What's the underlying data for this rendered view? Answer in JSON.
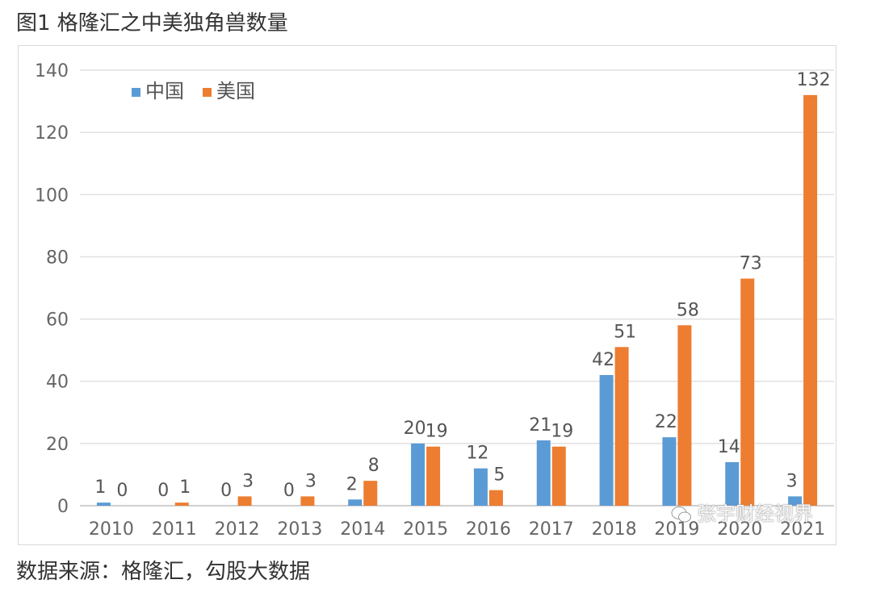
{
  "figure": {
    "title": "图1 格隆汇之中美独角兽数量",
    "source": "数据来源：格隆汇，勾股大数据",
    "watermark": "张宇财经视界"
  },
  "chart_data": {
    "type": "bar",
    "categories": [
      "2010",
      "2011",
      "2012",
      "2013",
      "2014",
      "2015",
      "2016",
      "2017",
      "2018",
      "2019",
      "2020",
      "2021"
    ],
    "series": [
      {
        "name": "中国",
        "color": "#5b9bd5",
        "values": [
          1,
          0,
          0,
          0,
          2,
          20,
          12,
          21,
          42,
          22,
          14,
          3
        ]
      },
      {
        "name": "美国",
        "color": "#ed7d31",
        "values": [
          0,
          1,
          3,
          3,
          8,
          19,
          5,
          19,
          51,
          58,
          73,
          132
        ]
      }
    ],
    "ylim": [
      0,
      140
    ],
    "yticks": [
      0,
      20,
      40,
      60,
      80,
      100,
      120,
      140
    ],
    "grid": true,
    "legend": "top-left",
    "data_labels": true
  }
}
